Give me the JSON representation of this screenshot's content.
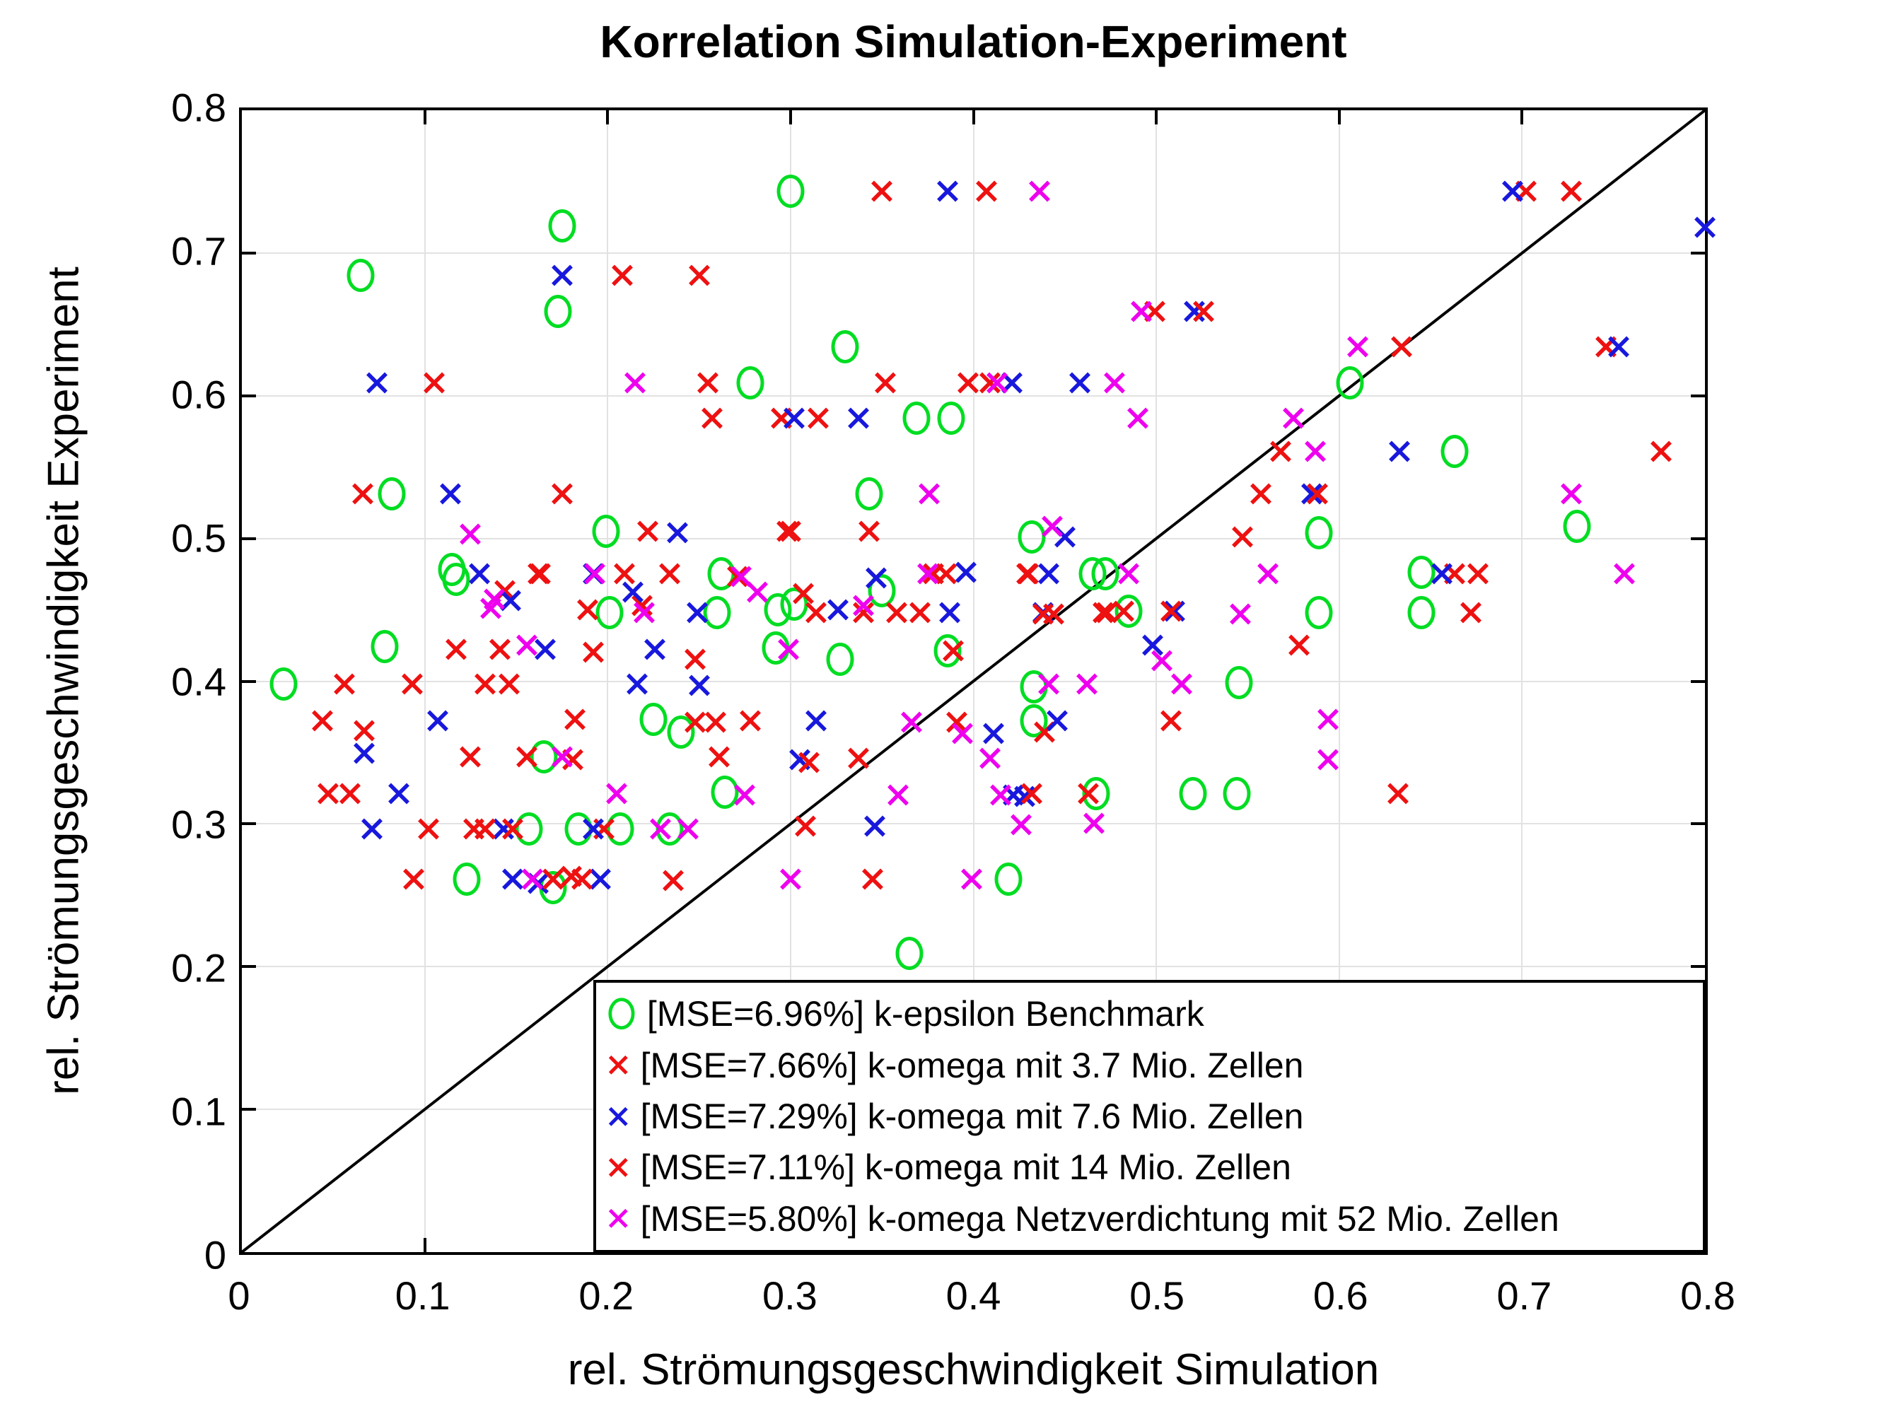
{
  "chart_data": {
    "type": "scatter",
    "title": "Korrelation Simulation-Experiment",
    "xlabel": "rel. Strömungsgeschwindigkeit Simulation",
    "ylabel": "rel. Strömungsgeschwindigkeit Experiment",
    "xlim": [
      0,
      0.8
    ],
    "ylim": [
      0,
      0.8
    ],
    "xtick_labels": [
      "0",
      "0.1",
      "0.2",
      "0.3",
      "0.4",
      "0.5",
      "0.6",
      "0.7",
      "0.8"
    ],
    "ytick_labels": [
      "0",
      "0.1",
      "0.2",
      "0.3",
      "0.4",
      "0.5",
      "0.6",
      "0.7",
      "0.8"
    ],
    "grid": true,
    "reference_line": "y=x",
    "legend_position": "inside-bottom-right",
    "marker_colors": {
      "green": "#00dd22",
      "red": "#ee1111",
      "blue": "#1818dd",
      "magenta": "#ee00ee"
    },
    "series": [
      {
        "name": "[MSE=6.96%] k-epsilon Benchmark",
        "marker": "circle",
        "color": "#00dd22",
        "points": [
          [
            0.023,
            0.397
          ],
          [
            0.065,
            0.683
          ],
          [
            0.078,
            0.423
          ],
          [
            0.082,
            0.53
          ],
          [
            0.115,
            0.477
          ],
          [
            0.117,
            0.47
          ],
          [
            0.123,
            0.26
          ],
          [
            0.157,
            0.295
          ],
          [
            0.165,
            0.346
          ],
          [
            0.17,
            0.254
          ],
          [
            0.173,
            0.658
          ],
          [
            0.175,
            0.718
          ],
          [
            0.184,
            0.295
          ],
          [
            0.199,
            0.504
          ],
          [
            0.201,
            0.447
          ],
          [
            0.207,
            0.295
          ],
          [
            0.225,
            0.372
          ],
          [
            0.234,
            0.295
          ],
          [
            0.24,
            0.363
          ],
          [
            0.26,
            0.447
          ],
          [
            0.262,
            0.474
          ],
          [
            0.264,
            0.321
          ],
          [
            0.278,
            0.608
          ],
          [
            0.292,
            0.422
          ],
          [
            0.293,
            0.449
          ],
          [
            0.3,
            0.742
          ],
          [
            0.302,
            0.453
          ],
          [
            0.327,
            0.414
          ],
          [
            0.33,
            0.633
          ],
          [
            0.343,
            0.53
          ],
          [
            0.35,
            0.462
          ],
          [
            0.365,
            0.208
          ],
          [
            0.369,
            0.583
          ],
          [
            0.386,
            0.42
          ],
          [
            0.388,
            0.583
          ],
          [
            0.419,
            0.26
          ],
          [
            0.432,
            0.5
          ],
          [
            0.433,
            0.371
          ],
          [
            0.433,
            0.395
          ],
          [
            0.465,
            0.474
          ],
          [
            0.467,
            0.32
          ],
          [
            0.472,
            0.474
          ],
          [
            0.485,
            0.448
          ],
          [
            0.52,
            0.32
          ],
          [
            0.544,
            0.32
          ],
          [
            0.545,
            0.398
          ],
          [
            0.589,
            0.503
          ],
          [
            0.589,
            0.447
          ],
          [
            0.606,
            0.608
          ],
          [
            0.645,
            0.475
          ],
          [
            0.645,
            0.447
          ],
          [
            0.663,
            0.56
          ],
          [
            0.73,
            0.507
          ]
        ]
      },
      {
        "name": "[MSE=7.66%] k-omega mit 3.7 Mio. Zellen",
        "marker": "x",
        "color": "#ee1111",
        "points": [
          [
            0.066,
            0.53
          ],
          [
            0.094,
            0.26
          ],
          [
            0.105,
            0.608
          ],
          [
            0.117,
            0.421
          ],
          [
            0.125,
            0.346
          ],
          [
            0.127,
            0.295
          ],
          [
            0.141,
            0.421
          ],
          [
            0.144,
            0.462
          ],
          [
            0.146,
            0.397
          ],
          [
            0.163,
            0.474
          ],
          [
            0.175,
            0.53
          ],
          [
            0.18,
            0.262
          ],
          [
            0.189,
            0.449
          ],
          [
            0.198,
            0.295
          ],
          [
            0.209,
            0.474
          ],
          [
            0.219,
            0.452
          ],
          [
            0.234,
            0.474
          ],
          [
            0.236,
            0.259
          ],
          [
            0.25,
            0.683
          ],
          [
            0.255,
            0.608
          ],
          [
            0.271,
            0.472
          ],
          [
            0.295,
            0.583
          ],
          [
            0.3,
            0.504
          ],
          [
            0.307,
            0.46
          ],
          [
            0.314,
            0.447
          ],
          [
            0.34,
            0.447
          ],
          [
            0.345,
            0.26
          ],
          [
            0.352,
            0.608
          ],
          [
            0.358,
            0.447
          ],
          [
            0.378,
            0.474
          ],
          [
            0.389,
            0.42
          ],
          [
            0.397,
            0.608
          ],
          [
            0.407,
            0.742
          ],
          [
            0.43,
            0.474
          ],
          [
            0.439,
            0.363
          ],
          [
            0.463,
            0.32
          ],
          [
            0.473,
            0.447
          ],
          [
            0.499,
            0.658
          ],
          [
            0.508,
            0.371
          ],
          [
            0.547,
            0.5
          ],
          [
            0.557,
            0.53
          ],
          [
            0.568,
            0.56
          ],
          [
            0.578,
            0.424
          ],
          [
            0.634,
            0.633
          ],
          [
            0.663,
            0.474
          ],
          [
            0.672,
            0.447
          ],
          [
            0.702,
            0.742
          ],
          [
            0.746,
            0.633
          ],
          [
            0.776,
            0.56
          ]
        ]
      },
      {
        "name": "[MSE=7.29%] k-omega mit 7.6 Mio. Zellen",
        "marker": "x",
        "color": "#1818dd",
        "points": [
          [
            0.067,
            0.348
          ],
          [
            0.071,
            0.295
          ],
          [
            0.074,
            0.608
          ],
          [
            0.086,
            0.32
          ],
          [
            0.107,
            0.371
          ],
          [
            0.114,
            0.53
          ],
          [
            0.13,
            0.474
          ],
          [
            0.143,
            0.295
          ],
          [
            0.147,
            0.455
          ],
          [
            0.148,
            0.26
          ],
          [
            0.162,
            0.257
          ],
          [
            0.166,
            0.421
          ],
          [
            0.175,
            0.683
          ],
          [
            0.192,
            0.474
          ],
          [
            0.192,
            0.295
          ],
          [
            0.196,
            0.26
          ],
          [
            0.214,
            0.461
          ],
          [
            0.216,
            0.397
          ],
          [
            0.226,
            0.421
          ],
          [
            0.238,
            0.503
          ],
          [
            0.249,
            0.447
          ],
          [
            0.25,
            0.396
          ],
          [
            0.302,
            0.583
          ],
          [
            0.305,
            0.344
          ],
          [
            0.314,
            0.371
          ],
          [
            0.326,
            0.449
          ],
          [
            0.337,
            0.583
          ],
          [
            0.346,
            0.297
          ],
          [
            0.347,
            0.471
          ],
          [
            0.386,
            0.742
          ],
          [
            0.387,
            0.447
          ],
          [
            0.396,
            0.475
          ],
          [
            0.411,
            0.362
          ],
          [
            0.421,
            0.608
          ],
          [
            0.422,
            0.319
          ],
          [
            0.428,
            0.318
          ],
          [
            0.438,
            0.447
          ],
          [
            0.441,
            0.474
          ],
          [
            0.446,
            0.371
          ],
          [
            0.45,
            0.5
          ],
          [
            0.458,
            0.608
          ],
          [
            0.498,
            0.424
          ],
          [
            0.51,
            0.448
          ],
          [
            0.521,
            0.658
          ],
          [
            0.585,
            0.53
          ],
          [
            0.633,
            0.56
          ],
          [
            0.656,
            0.474
          ],
          [
            0.695,
            0.742
          ],
          [
            0.753,
            0.633
          ],
          [
            0.8,
            0.717
          ]
        ]
      },
      {
        "name": "[MSE=7.11%] k-omega mit 14 Mio. Zellen",
        "marker": "x",
        "color": "#ee1111",
        "points": [
          [
            0.044,
            0.371
          ],
          [
            0.047,
            0.32
          ],
          [
            0.056,
            0.397
          ],
          [
            0.059,
            0.32
          ],
          [
            0.067,
            0.364
          ],
          [
            0.093,
            0.397
          ],
          [
            0.102,
            0.295
          ],
          [
            0.133,
            0.397
          ],
          [
            0.133,
            0.295
          ],
          [
            0.148,
            0.295
          ],
          [
            0.156,
            0.346
          ],
          [
            0.162,
            0.474
          ],
          [
            0.17,
            0.26
          ],
          [
            0.181,
            0.344
          ],
          [
            0.182,
            0.372
          ],
          [
            0.186,
            0.26
          ],
          [
            0.192,
            0.419
          ],
          [
            0.208,
            0.683
          ],
          [
            0.222,
            0.504
          ],
          [
            0.248,
            0.414
          ],
          [
            0.248,
            0.37
          ],
          [
            0.257,
            0.583
          ],
          [
            0.259,
            0.37
          ],
          [
            0.261,
            0.346
          ],
          [
            0.278,
            0.371
          ],
          [
            0.298,
            0.504
          ],
          [
            0.308,
            0.297
          ],
          [
            0.31,
            0.342
          ],
          [
            0.315,
            0.583
          ],
          [
            0.337,
            0.345
          ],
          [
            0.343,
            0.504
          ],
          [
            0.35,
            0.742
          ],
          [
            0.371,
            0.447
          ],
          [
            0.385,
            0.474
          ],
          [
            0.391,
            0.37
          ],
          [
            0.409,
            0.608
          ],
          [
            0.429,
            0.474
          ],
          [
            0.432,
            0.32
          ],
          [
            0.438,
            0.446
          ],
          [
            0.444,
            0.446
          ],
          [
            0.471,
            0.447
          ],
          [
            0.482,
            0.448
          ],
          [
            0.508,
            0.448
          ],
          [
            0.526,
            0.658
          ],
          [
            0.588,
            0.53
          ],
          [
            0.632,
            0.32
          ],
          [
            0.676,
            0.474
          ],
          [
            0.727,
            0.742
          ]
        ]
      },
      {
        "name": "[MSE=5.80%] k-omega Netzverdichtung mit 52 Mio. Zellen",
        "marker": "x",
        "color": "#ee00ee",
        "points": [
          [
            0.125,
            0.502
          ],
          [
            0.136,
            0.45
          ],
          [
            0.138,
            0.456
          ],
          [
            0.156,
            0.424
          ],
          [
            0.159,
            0.26
          ],
          [
            0.175,
            0.346
          ],
          [
            0.193,
            0.474
          ],
          [
            0.205,
            0.32
          ],
          [
            0.215,
            0.608
          ],
          [
            0.22,
            0.447
          ],
          [
            0.229,
            0.295
          ],
          [
            0.244,
            0.295
          ],
          [
            0.273,
            0.472
          ],
          [
            0.275,
            0.319
          ],
          [
            0.282,
            0.461
          ],
          [
            0.299,
            0.421
          ],
          [
            0.3,
            0.26
          ],
          [
            0.34,
            0.452
          ],
          [
            0.359,
            0.319
          ],
          [
            0.366,
            0.37
          ],
          [
            0.375,
            0.474
          ],
          [
            0.376,
            0.53
          ],
          [
            0.394,
            0.362
          ],
          [
            0.399,
            0.26
          ],
          [
            0.409,
            0.345
          ],
          [
            0.413,
            0.608
          ],
          [
            0.415,
            0.319
          ],
          [
            0.426,
            0.298
          ],
          [
            0.436,
            0.742
          ],
          [
            0.441,
            0.397
          ],
          [
            0.443,
            0.507
          ],
          [
            0.462,
            0.397
          ],
          [
            0.466,
            0.299
          ],
          [
            0.477,
            0.608
          ],
          [
            0.485,
            0.474
          ],
          [
            0.49,
            0.583
          ],
          [
            0.492,
            0.658
          ],
          [
            0.503,
            0.413
          ],
          [
            0.514,
            0.397
          ],
          [
            0.546,
            0.446
          ],
          [
            0.561,
            0.474
          ],
          [
            0.575,
            0.583
          ],
          [
            0.587,
            0.56
          ],
          [
            0.594,
            0.372
          ],
          [
            0.594,
            0.344
          ],
          [
            0.61,
            0.633
          ],
          [
            0.727,
            0.53
          ],
          [
            0.756,
            0.474
          ]
        ]
      }
    ]
  },
  "legend": {
    "entries": [
      {
        "label": "[MSE=6.96%] k-epsilon Benchmark",
        "marker": "circle",
        "color": "#00dd22"
      },
      {
        "label": "[MSE=7.66%] k-omega mit 3.7 Mio. Zellen",
        "marker": "x",
        "color": "#ee1111"
      },
      {
        "label": "[MSE=7.29%] k-omega mit 7.6 Mio. Zellen",
        "marker": "x",
        "color": "#1818dd"
      },
      {
        "label": "[MSE=7.11%] k-omega mit 14 Mio. Zellen",
        "marker": "x",
        "color": "#ee1111"
      },
      {
        "label": "[MSE=5.80%] k-omega Netzverdichtung mit 52 Mio. Zellen",
        "marker": "x",
        "color": "#ee00ee"
      }
    ]
  }
}
